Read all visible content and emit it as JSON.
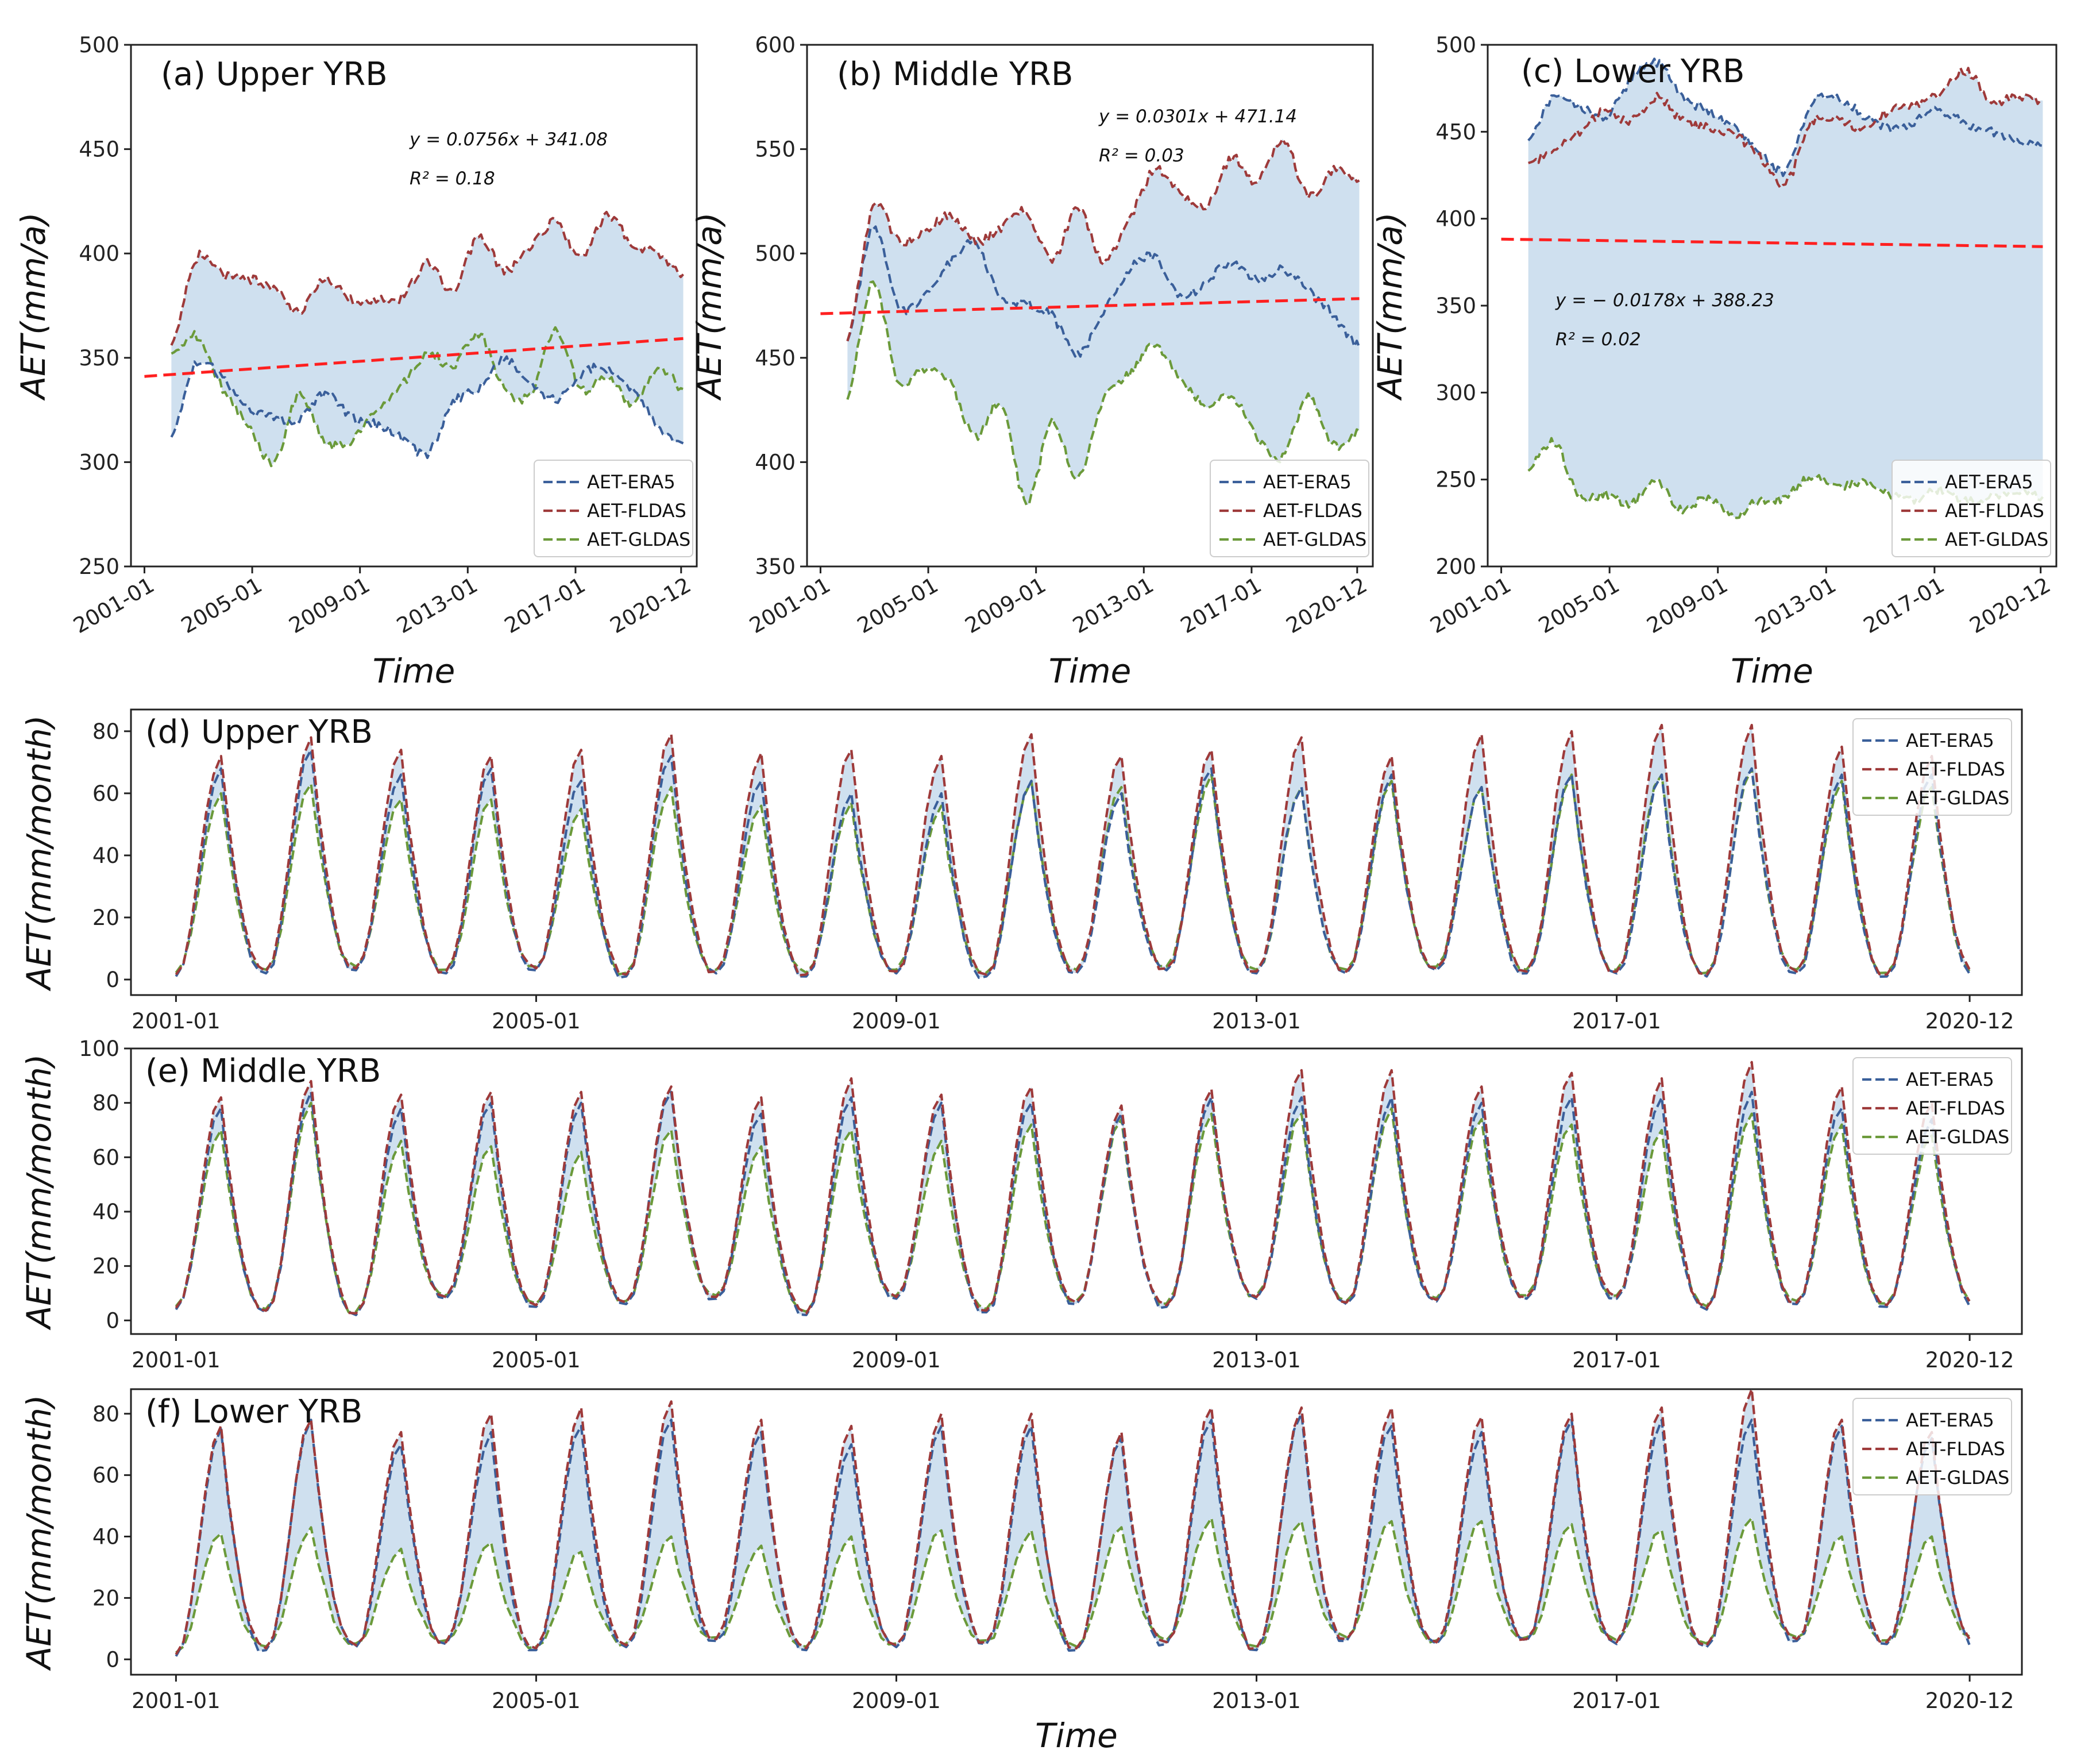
{
  "colors": {
    "era5": "#3a5f9a",
    "fldas": "#9e3a3a",
    "gldas": "#6b9a3a",
    "trend": "#ff2020",
    "fill": "#cfe0ef"
  },
  "chart_data": [
    {
      "id": "a",
      "type": "line",
      "title": "(a) Upper YRB",
      "xlabel": "Time",
      "ylabel": "AET(mm/a)",
      "xlim": [
        2000.5,
        2021.5
      ],
      "ylim": [
        250,
        500
      ],
      "yticks": [
        "250",
        "300",
        "350",
        "400",
        "450",
        "500"
      ],
      "xticks": [
        "2001-01",
        "2005-01",
        "2009-01",
        "2013-01",
        "2017-01",
        "2020-12"
      ],
      "x_start": 2002.0,
      "x_end": 2021.0,
      "series": [
        {
          "name": "AET-ERA5",
          "values": [
            312,
            348,
            340,
            326,
            322,
            320,
            333,
            322,
            318,
            312,
            304,
            328,
            336,
            350,
            338,
            330,
            342,
            345,
            334,
            318,
            309
          ]
        },
        {
          "name": "AET-FLDAS",
          "values": [
            356,
            398,
            390,
            388,
            383,
            372,
            388,
            378,
            378,
            379,
            395,
            382,
            408,
            392,
            402,
            415,
            398,
            418,
            405,
            400,
            390
          ]
        },
        {
          "name": "AET-GLDAS",
          "values": [
            352,
            360,
            335,
            318,
            300,
            332,
            310,
            310,
            325,
            337,
            352,
            346,
            362,
            336,
            332,
            364,
            335,
            342,
            328,
            345,
            335
          ]
        }
      ],
      "trend": {
        "slope": 0.0756,
        "intercept": 341.08,
        "x0": 2001.0,
        "x1": 2021.0
      },
      "equation": "y = 0.0756x + 341.08",
      "r2": "R² = 0.18"
    },
    {
      "id": "b",
      "type": "line",
      "title": "(b) Middle YRB",
      "xlabel": "Time",
      "ylabel": "AET(mm/a)",
      "xlim": [
        2000.5,
        2021.5
      ],
      "ylim": [
        350,
        600
      ],
      "yticks": [
        "350",
        "400",
        "450",
        "500",
        "550",
        "600"
      ],
      "xticks": [
        "2001-01",
        "2005-01",
        "2009-01",
        "2013-01",
        "2017-01",
        "2020-12"
      ],
      "x_start": 2002.0,
      "x_end": 2021.0,
      "series": [
        {
          "name": "AET-ERA5",
          "values": [
            458,
            512,
            475,
            480,
            496,
            505,
            478,
            476,
            470,
            452,
            472,
            492,
            498,
            480,
            486,
            496,
            488,
            492,
            482,
            470,
            455
          ]
        },
        {
          "name": "AET-FLDAS",
          "values": [
            458,
            522,
            506,
            510,
            518,
            506,
            512,
            520,
            496,
            522,
            496,
            516,
            540,
            530,
            522,
            546,
            534,
            555,
            528,
            540,
            535
          ]
        },
        {
          "name": "AET-GLDAS",
          "values": [
            430,
            486,
            438,
            445,
            438,
            412,
            428,
            380,
            420,
            392,
            430,
            442,
            456,
            440,
            428,
            432,
            412,
            402,
            432,
            408,
            415
          ]
        }
      ],
      "trend": {
        "slope": 0.0301,
        "intercept": 471.14,
        "x0": 2001.0,
        "x1": 2021.0
      },
      "equation": "y = 0.0301x + 471.14",
      "r2": "R² = 0.03"
    },
    {
      "id": "c",
      "type": "line",
      "title": "(c) Lower YRB",
      "xlabel": "Time",
      "ylabel": "AET(mm/a)",
      "xlim": [
        2000.5,
        2021.5
      ],
      "ylim": [
        200,
        500
      ],
      "yticks": [
        "200",
        "250",
        "300",
        "350",
        "400",
        "450",
        "500"
      ],
      "xticks": [
        "2001-01",
        "2005-01",
        "2009-01",
        "2013-01",
        "2017-01",
        "2020-12"
      ],
      "x_start": 2002.0,
      "x_end": 2021.0,
      "series": [
        {
          "name": "AET-ERA5",
          "values": [
            445,
            470,
            465,
            458,
            480,
            490,
            470,
            462,
            452,
            438,
            428,
            465,
            470,
            460,
            452,
            456,
            462,
            455,
            450,
            446,
            442
          ]
        },
        {
          "name": "AET-FLDAS",
          "values": [
            432,
            440,
            450,
            462,
            456,
            470,
            456,
            452,
            448,
            436,
            420,
            455,
            458,
            452,
            462,
            466,
            472,
            485,
            468,
            470,
            468
          ]
        },
        {
          "name": "AET-GLDAS",
          "values": [
            255,
            272,
            240,
            242,
            236,
            248,
            232,
            240,
            230,
            238,
            240,
            252,
            246,
            248,
            242,
            238,
            244,
            238,
            240,
            243,
            240
          ]
        }
      ],
      "trend": {
        "slope": -0.0178,
        "intercept": 388.23,
        "x0": 2001.0,
        "x1": 2021.0
      },
      "equation": "y = − 0.0178x + 388.23",
      "r2": "R² = 0.02"
    },
    {
      "id": "d",
      "type": "line",
      "title": "(d) Upper YRB",
      "xlabel": "",
      "ylabel": "AET(mm/month)",
      "xlim": [
        2000.5,
        2021.5
      ],
      "ylim": [
        -5,
        87
      ],
      "yticks": [
        "0",
        "20",
        "40",
        "60",
        "80"
      ],
      "xticks": [
        "2001-01",
        "2005-01",
        "2009-01",
        "2013-01",
        "2017-01",
        "2020-12"
      ],
      "x_start": 2001.0,
      "x_end": 2020.92,
      "annual_peaks": {
        "AET-ERA5": [
          68,
          74,
          66,
          68,
          64,
          72,
          64,
          60,
          60,
          64,
          60,
          68,
          62,
          66,
          62,
          66,
          66,
          68,
          66,
          66
        ],
        "AET-FLDAS": [
          72,
          78,
          74,
          72,
          74,
          79,
          73,
          74,
          72,
          79,
          72,
          74,
          78,
          72,
          79,
          80,
          82,
          82,
          75,
          72
        ],
        "AET-GLDAS": [
          60,
          63,
          58,
          58,
          55,
          62,
          56,
          57,
          56,
          64,
          62,
          66,
          62,
          64,
          62,
          66,
          66,
          68,
          64,
          62
        ]
      },
      "annual_mins": [
        1,
        2,
        3,
        2,
        3,
        1,
        2,
        1,
        2,
        1,
        2,
        3,
        2,
        2,
        3,
        2,
        2,
        1,
        2,
        1
      ]
    },
    {
      "id": "e",
      "type": "line",
      "title": "(e) Middle YRB",
      "xlabel": "",
      "ylabel": "AET(mm/month)",
      "xlim": [
        2000.5,
        2021.5
      ],
      "ylim": [
        -5,
        100
      ],
      "yticks": [
        "0",
        "20",
        "40",
        "60",
        "80",
        "100"
      ],
      "xticks": [
        "2001-01",
        "2005-01",
        "2009-01",
        "2013-01",
        "2017-01",
        "2020-12"
      ],
      "x_start": 2001.0,
      "x_end": 2020.92,
      "annual_peaks": {
        "AET-ERA5": [
          78,
          84,
          78,
          80,
          80,
          84,
          76,
          82,
          80,
          80,
          76,
          82,
          82,
          82,
          80,
          82,
          82,
          84,
          78,
          74
        ],
        "AET-FLDAS": [
          82,
          88,
          83,
          84,
          84,
          86,
          82,
          89,
          83,
          86,
          79,
          85,
          92,
          92,
          86,
          91,
          89,
          95,
          86,
          80
        ],
        "AET-GLDAS": [
          70,
          80,
          66,
          64,
          62,
          70,
          64,
          70,
          66,
          72,
          74,
          76,
          76,
          78,
          74,
          72,
          70,
          76,
          72,
          68
        ]
      },
      "annual_mins": [
        4,
        3,
        2,
        8,
        5,
        6,
        8,
        2,
        8,
        3,
        6,
        5,
        8,
        6,
        7,
        8,
        8,
        4,
        6,
        5
      ]
    },
    {
      "id": "f",
      "type": "line",
      "title": "(f) Lower YRB",
      "xlabel": "Time",
      "ylabel": "AET(mm/month)",
      "xlim": [
        2000.5,
        2021.5
      ],
      "ylim": [
        -5,
        88
      ],
      "yticks": [
        "0",
        "20",
        "40",
        "60",
        "80"
      ],
      "xticks": [
        "2001-01",
        "2005-01",
        "2009-01",
        "2013-01",
        "2017-01",
        "2020-12"
      ],
      "x_start": 2001.0,
      "x_end": 2020.92,
      "annual_peaks": {
        "AET-ERA5": [
          75,
          78,
          70,
          74,
          76,
          78,
          74,
          70,
          76,
          76,
          72,
          78,
          80,
          76,
          74,
          78,
          78,
          78,
          76,
          72
        ],
        "AET-FLDAS": [
          76,
          78,
          74,
          80,
          82,
          84,
          78,
          76,
          80,
          80,
          74,
          82,
          82,
          82,
          79,
          80,
          82,
          88,
          78,
          74
        ],
        "AET-GLDAS": [
          41,
          43,
          36,
          38,
          35,
          40,
          37,
          40,
          42,
          42,
          43,
          46,
          45,
          45,
          45,
          44,
          42,
          46,
          40,
          40
        ]
      },
      "annual_mins": [
        1,
        3,
        4,
        5,
        3,
        4,
        6,
        3,
        4,
        5,
        3,
        5,
        3,
        6,
        5,
        6,
        5,
        4,
        6,
        5
      ]
    }
  ]
}
